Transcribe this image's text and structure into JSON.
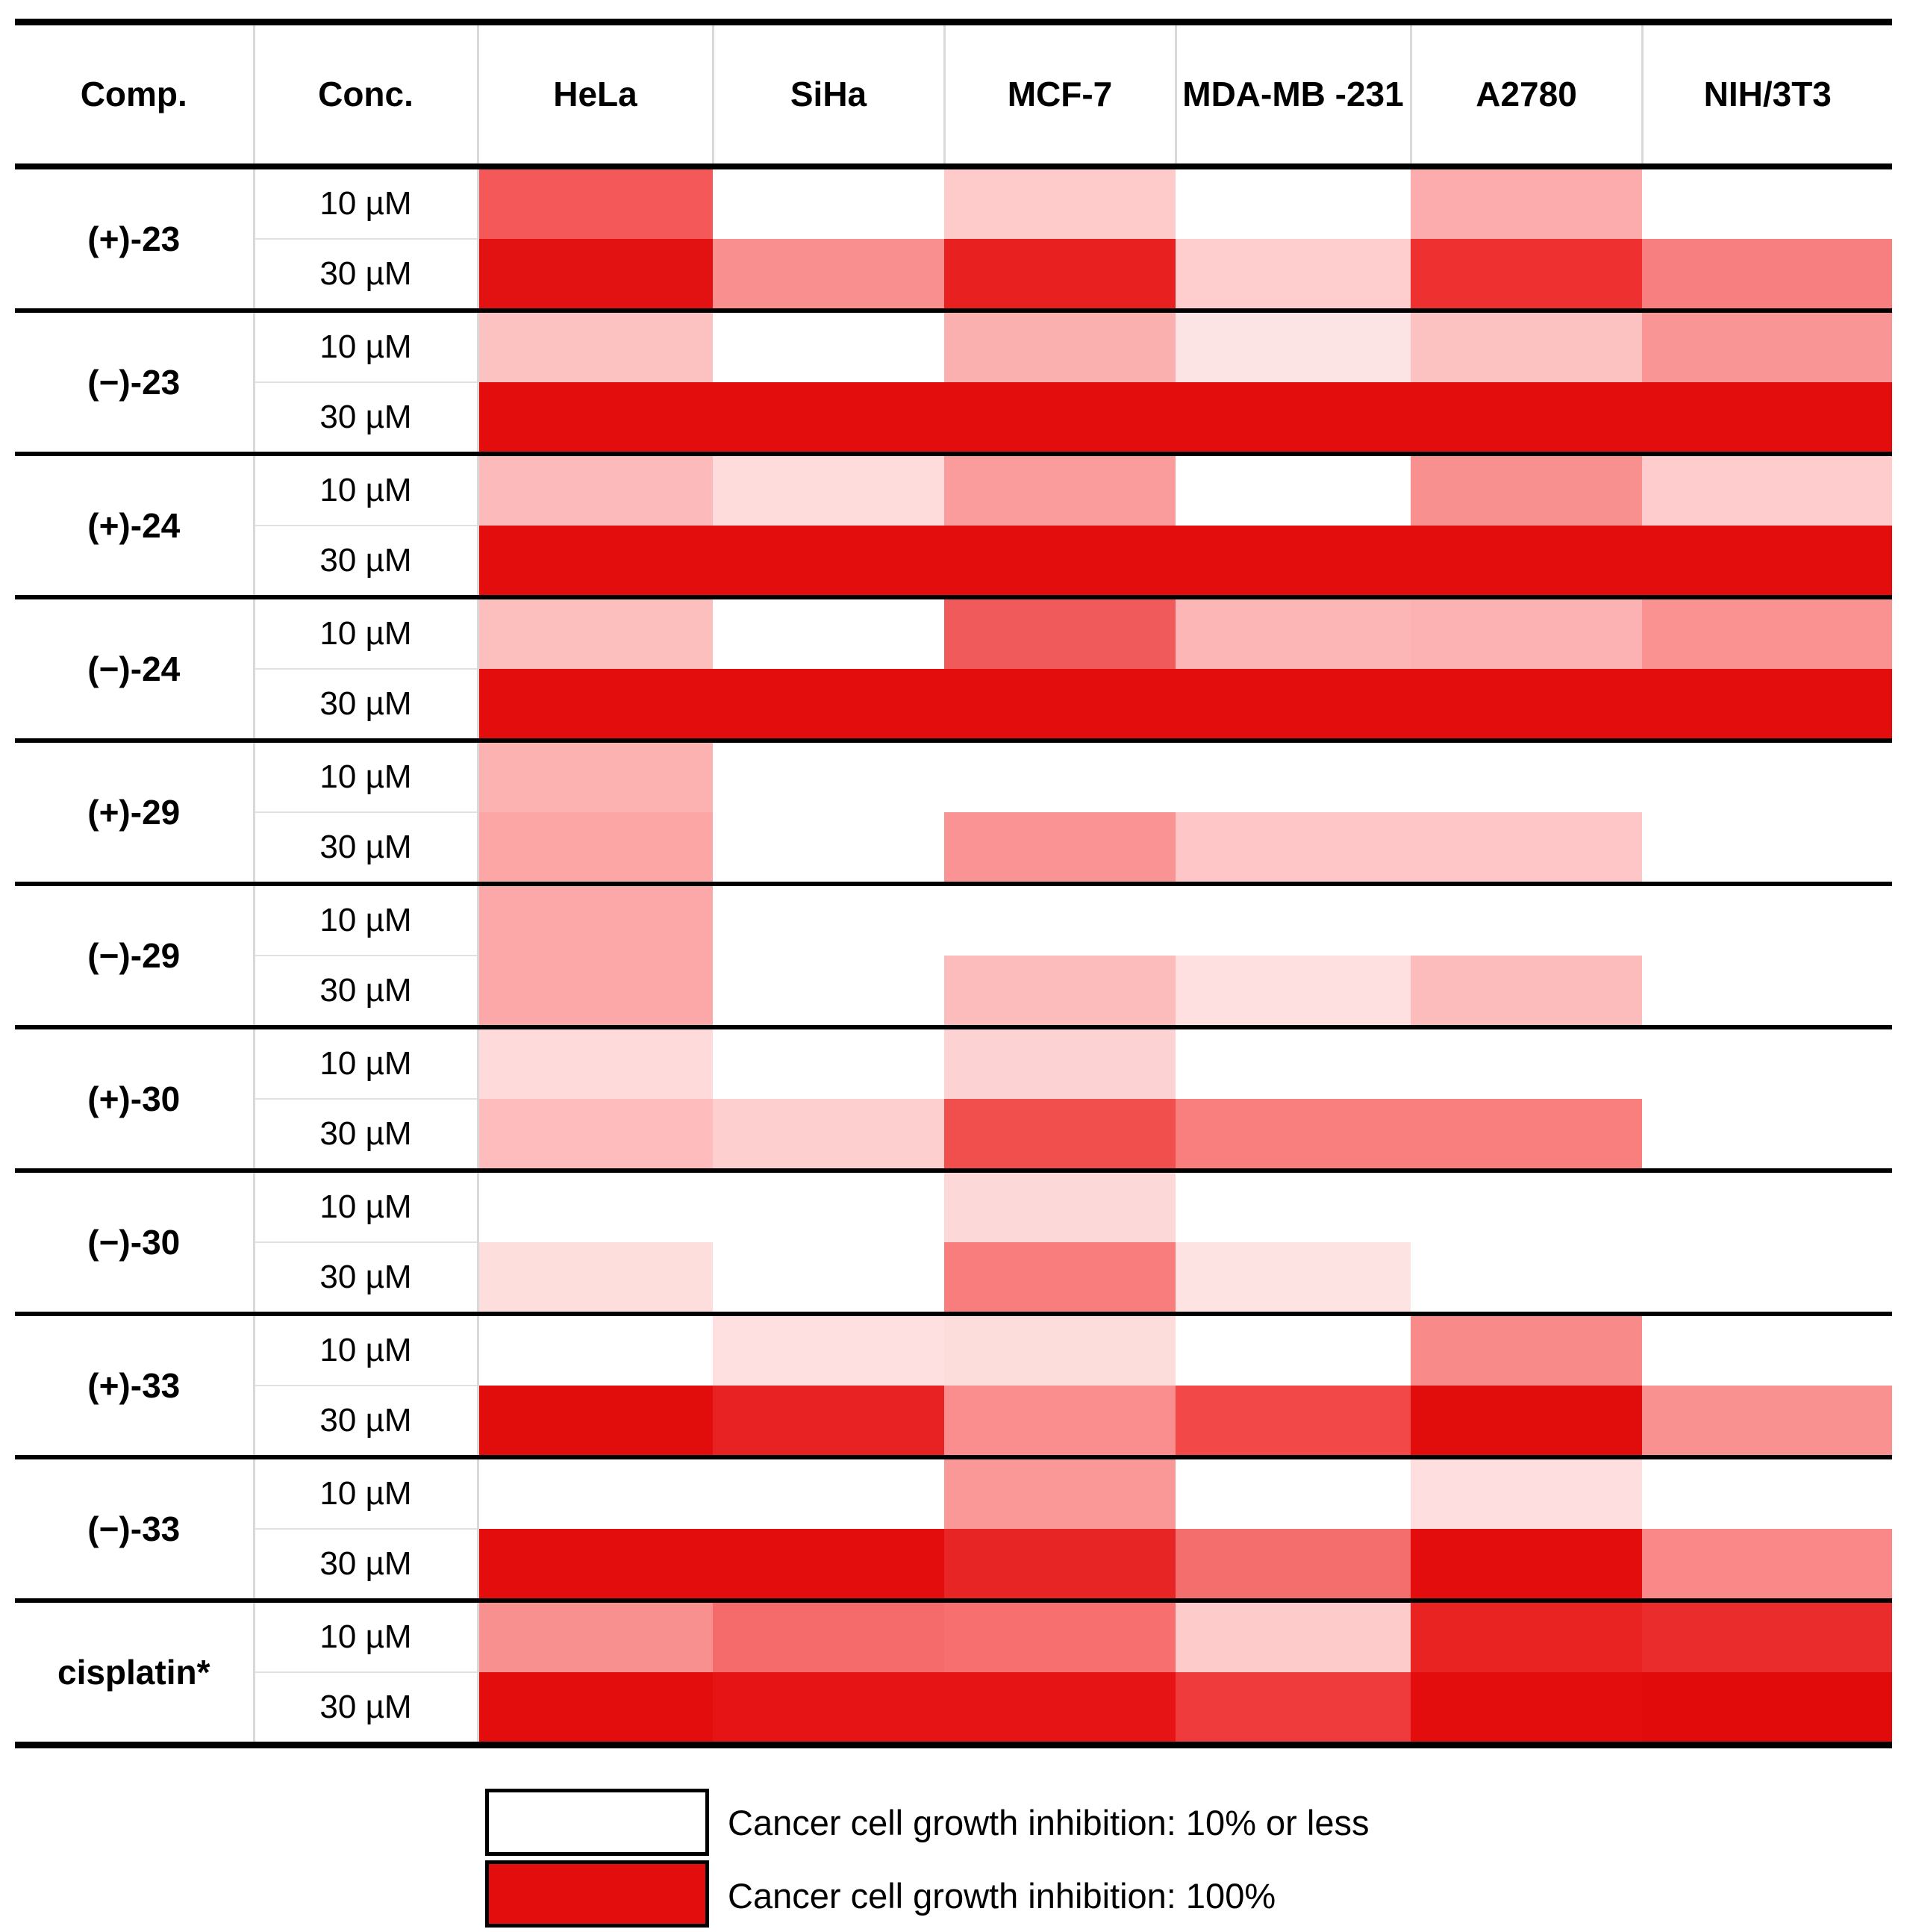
{
  "chart_data": {
    "type": "heatmap",
    "description": "Cancer cell growth inhibition heatmap: compounds at two concentrations across six cell lines; cell color encodes inhibition from white (10% or less) to full red (100%)",
    "columns": [
      "Comp.",
      "Conc.",
      "HeLa",
      "SiHa",
      "MCF-7",
      "MDA-MB -231",
      "A2780",
      "NIH/3T3"
    ],
    "cell_lines": [
      "HeLa",
      "SiHa",
      "MCF-7",
      "MDA-MB-231",
      "A2780",
      "NIH/3T3"
    ],
    "color_scale": {
      "min_color": "#FFFFFF",
      "max_color": "#E30D0D",
      "min_label": "10% or less",
      "max_label": "100%",
      "note": "approx_inhibition_pct values are estimated from cell color on the white-to-red scale"
    },
    "rows": [
      {
        "compound": "(+)-23",
        "doses": [
          {
            "conc": "10 µM",
            "colors": [
              "#F45858",
              "#FFFFFF",
              "#FECACA",
              "#FFFFFF",
              "#FCACAC",
              "#FFFFFF"
            ],
            "approx_inhibition_pct": [
              72,
              10,
              30,
              10,
              41,
              10
            ]
          },
          {
            "conc": "30 µM",
            "colors": [
              "#E31212",
              "#F98F8F",
              "#E82020",
              "#FECDCD",
              "#EE3030",
              "#F87F7F"
            ],
            "approx_inhibition_pct": [
              98,
              52,
              93,
              29,
              87,
              58
            ]
          }
        ]
      },
      {
        "compound": "(−)-23",
        "doses": [
          {
            "conc": "10 µM",
            "colors": [
              "#FCC2C2",
              "#FFFFFF",
              "#FBB0B0",
              "#FDE4E4",
              "#FCC2C2",
              "#FA9595"
            ],
            "approx_inhibition_pct": [
              33,
              10,
              39,
              21,
              33,
              49
            ]
          },
          {
            "conc": "30 µM",
            "colors": [
              "#E30D0D",
              "#E30D0D",
              "#E30D0D",
              "#E30D0D",
              "#E30D0D",
              "#E30D0D"
            ],
            "approx_inhibition_pct": [
              100,
              100,
              100,
              100,
              100,
              100
            ]
          }
        ]
      },
      {
        "compound": "(+)-24",
        "doses": [
          {
            "conc": "10 µM",
            "colors": [
              "#FDBABA",
              "#FEDCDC",
              "#FA9C9C",
              "#FFFFFF",
              "#F99090",
              "#FECCCC"
            ],
            "approx_inhibition_pct": [
              36,
              23,
              47,
              10,
              51,
              29
            ]
          },
          {
            "conc": "30 µM",
            "colors": [
              "#E30D0D",
              "#E30D0D",
              "#E30D0D",
              "#E30D0D",
              "#E30D0D",
              "#E30D0D"
            ],
            "approx_inhibition_pct": [
              100,
              100,
              100,
              100,
              100,
              100
            ]
          }
        ]
      },
      {
        "compound": "(−)-24",
        "doses": [
          {
            "conc": "10 µM",
            "colors": [
              "#FDBEBE",
              "#FFFFFF",
              "#F15A5A",
              "#FDB6B6",
              "#FCB2B2",
              "#FA9292"
            ],
            "approx_inhibition_pct": [
              34,
              10,
              71,
              37,
              38,
              50
            ]
          },
          {
            "conc": "30 µM",
            "colors": [
              "#E30D0D",
              "#E30D0D",
              "#E30D0D",
              "#E30D0D",
              "#E30D0D",
              "#E30D0D"
            ],
            "approx_inhibition_pct": [
              100,
              100,
              100,
              100,
              100,
              100
            ]
          }
        ]
      },
      {
        "compound": "(+)-29",
        "doses": [
          {
            "conc": "10 µM",
            "colors": [
              "#FDB2B2",
              "#FFFFFF",
              "#FFFFFF",
              "#FFFFFF",
              "#FFFFFF",
              "#FFFFFF"
            ],
            "approx_inhibition_pct": [
              37,
              10,
              10,
              10,
              10,
              10
            ]
          },
          {
            "conc": "30 µM",
            "colors": [
              "#FCA6A6",
              "#FFFFFF",
              "#FA9393",
              "#FEC6C6",
              "#FEC6C6",
              "#FFFFFF"
            ],
            "approx_inhibition_pct": [
              43,
              10,
              50,
              31,
              31,
              10
            ]
          }
        ]
      },
      {
        "compound": "(−)-29",
        "doses": [
          {
            "conc": "10 µM",
            "colors": [
              "#FCA8A8",
              "#FFFFFF",
              "#FFFFFF",
              "#FFFFFF",
              "#FFFFFF",
              "#FFFFFF"
            ],
            "approx_inhibition_pct": [
              42,
              10,
              10,
              10,
              10,
              10
            ]
          },
          {
            "conc": "30 µM",
            "colors": [
              "#FCA8A8",
              "#FFFFFF",
              "#FDBCBC",
              "#FEE0E0",
              "#FDBCBC",
              "#FFFFFF"
            ],
            "approx_inhibition_pct": [
              42,
              10,
              35,
              22,
              35,
              10
            ]
          }
        ]
      },
      {
        "compound": "(+)-30",
        "doses": [
          {
            "conc": "10 µM",
            "colors": [
              "#FEDADA",
              "#FFFFFF",
              "#FDD2D2",
              "#FFFFFF",
              "#FFFFFF",
              "#FFFFFF"
            ],
            "approx_inhibition_pct": [
              23,
              10,
              27,
              10,
              10,
              10
            ]
          },
          {
            "conc": "30 µM",
            "colors": [
              "#FEBCBC",
              "#FECFCF",
              "#F14E4E",
              "#F97F7F",
              "#F97F7F",
              "#FFFFFF"
            ],
            "approx_inhibition_pct": [
              35,
              28,
              76,
              58,
              58,
              10
            ]
          }
        ]
      },
      {
        "compound": "(−)-30",
        "doses": [
          {
            "conc": "10 µM",
            "colors": [
              "#FFFFFF",
              "#FFFFFF",
              "#FDD8D8",
              "#FFFFFF",
              "#FFFFFF",
              "#FFFFFF"
            ],
            "approx_inhibition_pct": [
              10,
              10,
              25,
              10,
              10,
              10
            ]
          },
          {
            "conc": "30 µM",
            "colors": [
              "#FEDDDD",
              "#FFFFFF",
              "#F97D7D",
              "#FEE3E3",
              "#FFFFFF",
              "#FFFFFF"
            ],
            "approx_inhibition_pct": [
              23,
              10,
              58,
              21,
              10,
              10
            ]
          }
        ]
      },
      {
        "compound": "(+)-33",
        "doses": [
          {
            "conc": "10 µM",
            "colors": [
              "#FFFFFF",
              "#FEE0E0",
              "#FDDCDC",
              "#FFFFFF",
              "#F98A8A",
              "#FFFFFF"
            ],
            "approx_inhibition_pct": [
              10,
              22,
              24,
              10,
              53,
              10
            ]
          },
          {
            "conc": "30 µM",
            "colors": [
              "#E10C0C",
              "#E82222",
              "#FA8E8E",
              "#F24848",
              "#E10C0C",
              "#FA9191"
            ],
            "approx_inhibition_pct": [
              100,
              92,
              52,
              78,
              100,
              51
            ]
          }
        ]
      },
      {
        "compound": "(−)-33",
        "doses": [
          {
            "conc": "10 µM",
            "colors": [
              "#FFFFFF",
              "#FFFFFF",
              "#FA9898",
              "#FFFFFF",
              "#FEDEDE",
              "#FFFFFF"
            ],
            "approx_inhibition_pct": [
              10,
              10,
              48,
              10,
              23,
              10
            ]
          },
          {
            "conc": "30 µM",
            "colors": [
              "#E30D0D",
              "#E30D0D",
              "#E82525",
              "#F56E6E",
              "#E30D0D",
              "#FA8888"
            ],
            "approx_inhibition_pct": [
              100,
              100,
              91,
              64,
              100,
              54
            ]
          }
        ]
      },
      {
        "compound": "cisplatin*",
        "doses": [
          {
            "conc": "10 µM",
            "colors": [
              "#F99090",
              "#F56A6A",
              "#F76F6F",
              "#FECBCB",
              "#E92222",
              "#EA2C2C"
            ],
            "approx_inhibition_pct": [
              51,
              65,
              64,
              30,
              92,
              88
            ]
          },
          {
            "conc": "30 µM",
            "colors": [
              "#E30D0D",
              "#E61414",
              "#E61414",
              "#EF3B3B",
              "#E30D0D",
              "#E20B0B"
            ],
            "approx_inhibition_pct": [
              100,
              97,
              97,
              83,
              100,
              100
            ]
          }
        ]
      }
    ]
  },
  "legend": {
    "items": [
      {
        "swatch_color": "#FFFFFF",
        "label": "Cancer cell growth inhibition: 10% or less"
      },
      {
        "swatch_color": "#E30D0D",
        "label": "Cancer cell growth inhibition: 100%"
      }
    ]
  }
}
